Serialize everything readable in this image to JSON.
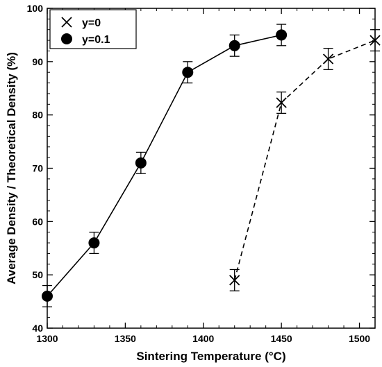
{
  "chart_data": {
    "type": "line",
    "title": "",
    "xlabel": "Sintering Temperature (°C)",
    "ylabel": "Average Density / Theoretical Density (%)",
    "xlim": [
      1300,
      1510
    ],
    "ylim": [
      40,
      100
    ],
    "xticks": [
      1300,
      1350,
      1400,
      1450,
      1500
    ],
    "yticks": [
      40,
      50,
      60,
      70,
      80,
      90,
      100
    ],
    "grid": false,
    "legend_position": "top-left",
    "series": [
      {
        "name": "y=0",
        "marker": "cross",
        "line_style": "dashed",
        "x": [
          1420,
          1450,
          1480,
          1510
        ],
        "y": [
          49,
          82.3,
          90.5,
          94
        ],
        "error": [
          2,
          2,
          2,
          2
        ]
      },
      {
        "name": "y=0.1",
        "marker": "filled-circle",
        "line_style": "solid",
        "x": [
          1300,
          1330,
          1360,
          1390,
          1420,
          1450
        ],
        "y": [
          46,
          56,
          71,
          88,
          93,
          95
        ],
        "error": [
          2,
          2,
          2,
          2,
          2,
          2
        ]
      }
    ]
  }
}
